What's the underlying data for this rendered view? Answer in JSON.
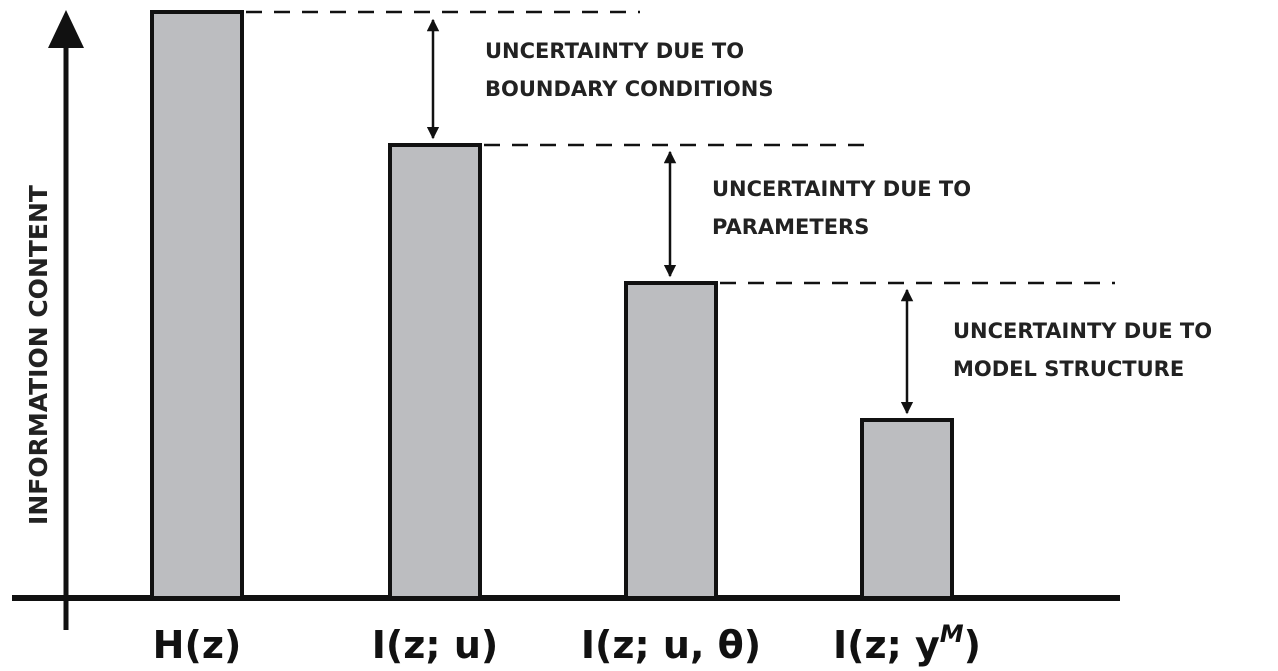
{
  "y_axis_label": "INFORMATION CONTENT",
  "bars": [
    {
      "label": "H(z)"
    },
    {
      "label": "I(z; u)"
    },
    {
      "label": "I(z; u, θ)"
    },
    {
      "label": "I(z; y",
      "superscript": "M",
      "suffix": ")"
    }
  ],
  "annotations": [
    {
      "lines": [
        "UNCERTAINTY DUE TO",
        "BOUNDARY CONDITIONS"
      ]
    },
    {
      "lines": [
        "UNCERTAINTY DUE TO",
        "PARAMETERS"
      ]
    },
    {
      "lines": [
        "UNCERTAINTY DUE TO",
        "MODEL STRUCTURE"
      ]
    }
  ]
}
